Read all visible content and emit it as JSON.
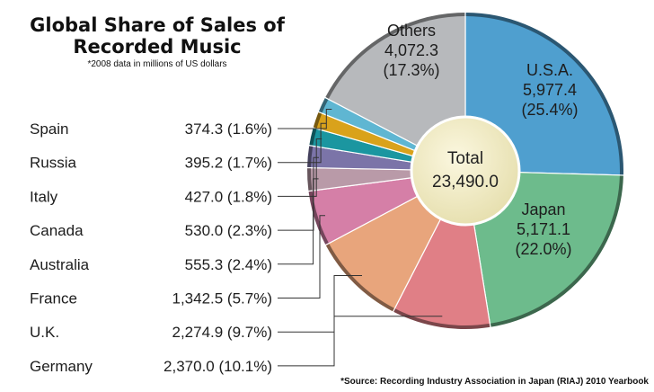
{
  "header": {
    "title_line1": "Global Share of Sales of",
    "title_line2": "Recorded Music",
    "subtitle": "*2008 data in millions of US dollars"
  },
  "source": "*Source: Recording Industry Association in Japan (RIAJ) 2010 Yearbook",
  "chart_data": {
    "type": "pie",
    "style": "donut",
    "total_label": "Total",
    "total_value": "23,490.0",
    "slices": [
      {
        "name": "U.S.A.",
        "value": 5977.4,
        "value_label": "5,977.4",
        "percent_label": "(25.4%)",
        "color": "#4f9fcf",
        "label_inside": true
      },
      {
        "name": "Japan",
        "value": 5171.1,
        "value_label": "5,171.1",
        "percent_label": "(22.0%)",
        "color": "#6dbb8c",
        "label_inside": true
      },
      {
        "name": "Germany",
        "value": 2370.0,
        "value_label": "2,370.0",
        "percent_label": "(10.1%)",
        "color": "#e07f86",
        "label_inside": false
      },
      {
        "name": "U.K.",
        "value": 2274.9,
        "value_label": "2,274.9",
        "percent_label": "(9.7%)",
        "color": "#e8a57c",
        "label_inside": false
      },
      {
        "name": "France",
        "value": 1342.5,
        "value_label": "1,342.5",
        "percent_label": "(5.7%)",
        "color": "#d57fa7",
        "label_inside": false
      },
      {
        "name": "Australia",
        "value": 555.3,
        "value_label": "555.3",
        "percent_label": "(2.4%)",
        "color": "#b99aa8",
        "label_inside": false
      },
      {
        "name": "Canada",
        "value": 530.0,
        "value_label": "530.0",
        "percent_label": "(2.3%)",
        "color": "#7b74a8",
        "label_inside": false
      },
      {
        "name": "Italy",
        "value": 427.0,
        "value_label": "427.0",
        "percent_label": "(1.8%)",
        "color": "#1b96a0",
        "label_inside": false
      },
      {
        "name": "Russia",
        "value": 395.2,
        "value_label": "395.2",
        "percent_label": "(1.7%)",
        "color": "#d9a21b",
        "label_inside": false
      },
      {
        "name": "Spain",
        "value": 374.3,
        "value_label": "374.3",
        "percent_label": "(1.6%)",
        "color": "#5fb6d2",
        "label_inside": false
      },
      {
        "name": "Others",
        "value": 4072.3,
        "value_label": "4,072.3",
        "percent_label": "(17.3%)",
        "color": "#b7b9bc",
        "label_inside": true
      }
    ]
  }
}
